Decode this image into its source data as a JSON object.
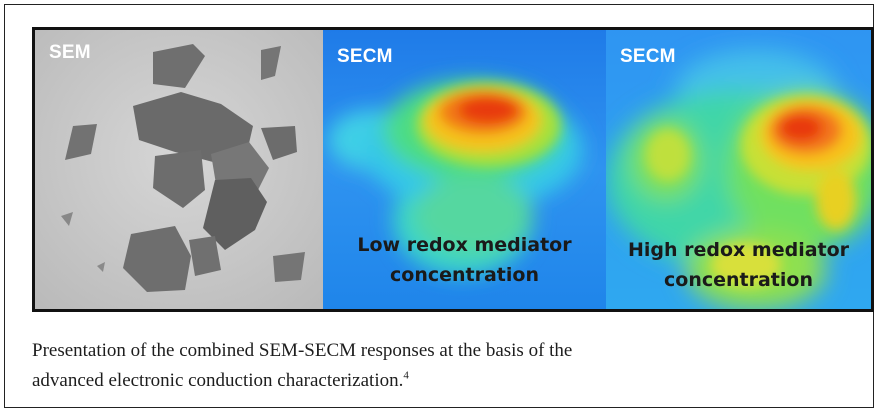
{
  "panels": [
    {
      "tag": "SEM"
    },
    {
      "tag": "SECM",
      "overlay_line1": "Low redox mediator",
      "overlay_line2": "concentration"
    },
    {
      "tag": "SECM",
      "overlay_line1": "High redox mediator",
      "overlay_line2": "concentration"
    }
  ],
  "caption": {
    "text_line1": "Presentation of the combined SEM-SECM responses at the basis of the",
    "text_line2": "advanced electronic conduction characterization.",
    "reference": "4"
  }
}
